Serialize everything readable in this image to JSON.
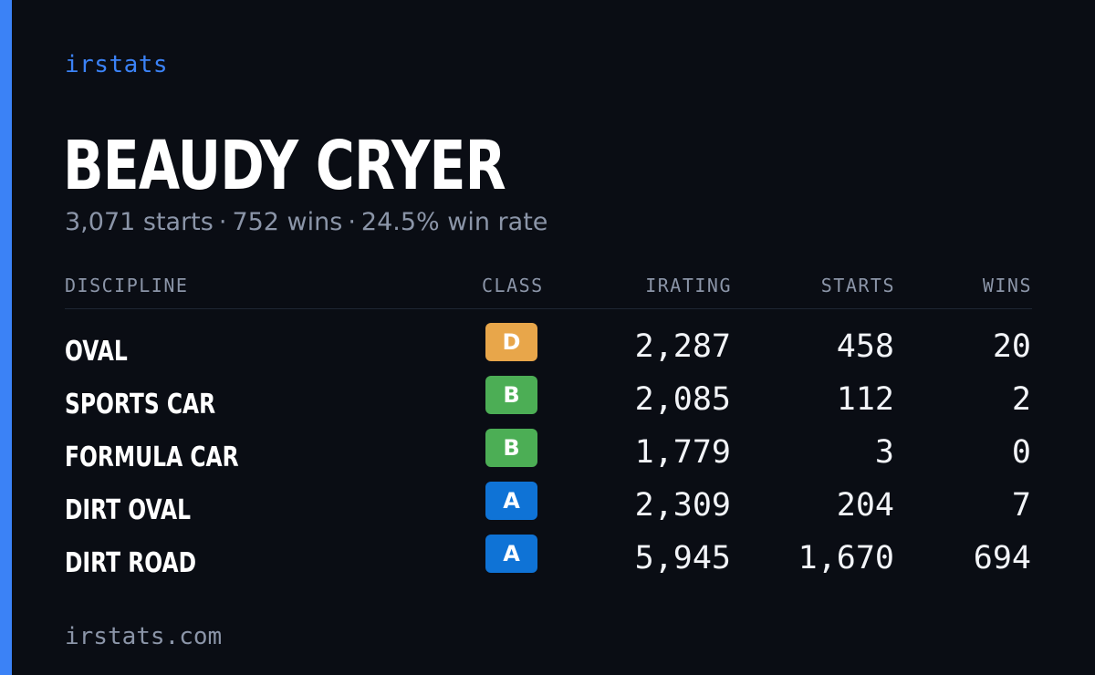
{
  "brand": "irstats",
  "driver": {
    "name": "BEAUDY CRYER"
  },
  "summary": {
    "starts": "3,071 starts",
    "wins": "752 wins",
    "win_rate": "24.5% win rate",
    "separator": "·"
  },
  "table": {
    "headers": {
      "discipline": "DISCIPLINE",
      "class": "CLASS",
      "irating": "IRATING",
      "starts": "STARTS",
      "wins": "WINS"
    },
    "rows": [
      {
        "discipline": "OVAL",
        "class": "D",
        "class_color": "#e8a64a",
        "irating": "2,287",
        "starts": "458",
        "wins": "20"
      },
      {
        "discipline": "SPORTS CAR",
        "class": "B",
        "class_color": "#4cae55",
        "irating": "2,085",
        "starts": "112",
        "wins": "2"
      },
      {
        "discipline": "FORMULA CAR",
        "class": "B",
        "class_color": "#4cae55",
        "irating": "1,779",
        "starts": "3",
        "wins": "0"
      },
      {
        "discipline": "DIRT OVAL",
        "class": "A",
        "class_color": "#0f73d6",
        "irating": "2,309",
        "starts": "204",
        "wins": "7"
      },
      {
        "discipline": "DIRT ROAD",
        "class": "A",
        "class_color": "#0f73d6",
        "irating": "5,945",
        "starts": "1,670",
        "wins": "694"
      }
    ]
  },
  "footer": {
    "url": "irstats.com"
  },
  "colors": {
    "background": "#0a0d14",
    "accent": "#3b82f6",
    "muted_text": "#8b95a8",
    "primary_text": "#ffffff"
  }
}
